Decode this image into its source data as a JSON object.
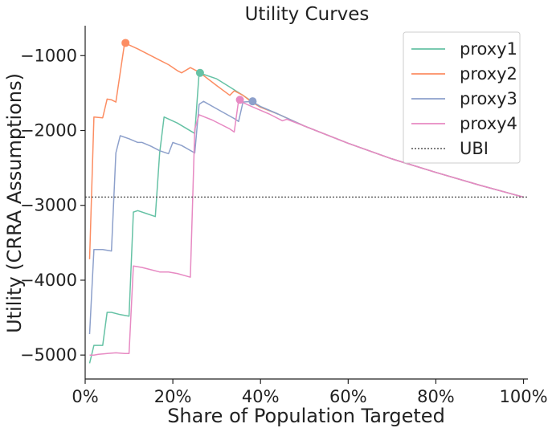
{
  "chart_data": {
    "type": "line",
    "title": "Utility Curves",
    "xlabel": "Share of Population Targeted",
    "ylabel": "Utility (CRRA Assumptions)",
    "xlim": [
      0,
      101
    ],
    "ylim": [
      -5320,
      -600
    ],
    "x_ticks": [
      0,
      20,
      40,
      60,
      80,
      100
    ],
    "x_tick_labels": [
      "0%",
      "20%",
      "40%",
      "60%",
      "80%",
      "100%"
    ],
    "y_ticks": [
      -1000,
      -2000,
      -3000,
      -4000,
      -5000
    ],
    "y_tick_labels": [
      "−1000",
      "−2000",
      "−3000",
      "−4000",
      "−5000"
    ],
    "grid": false,
    "legend_position": "top-right",
    "series": [
      {
        "name": "proxy1",
        "color": "#66c2a5",
        "points": [
          [
            1,
            -5110
          ],
          [
            2,
            -4870
          ],
          [
            4,
            -4870
          ],
          [
            5,
            -4430
          ],
          [
            6,
            -4430
          ],
          [
            8,
            -4460
          ],
          [
            10,
            -4480
          ],
          [
            11,
            -3090
          ],
          [
            12,
            -3070
          ],
          [
            14,
            -3110
          ],
          [
            16,
            -3150
          ],
          [
            17,
            -2300
          ],
          [
            18,
            -1820
          ],
          [
            21,
            -1900
          ],
          [
            25,
            -2040
          ],
          [
            26,
            -1230
          ],
          [
            30,
            -1310
          ],
          [
            33,
            -1420
          ],
          [
            36,
            -1530
          ],
          [
            38,
            -1610
          ],
          [
            40,
            -1680
          ],
          [
            44,
            -1780
          ],
          [
            50,
            -1940
          ],
          [
            60,
            -2170
          ],
          [
            70,
            -2380
          ],
          [
            80,
            -2560
          ],
          [
            90,
            -2730
          ],
          [
            100,
            -2890
          ]
        ],
        "marker": [
          26.2,
          -1230
        ]
      },
      {
        "name": "proxy2",
        "color": "#fc8d62",
        "points": [
          [
            1,
            -3720
          ],
          [
            2,
            -1820
          ],
          [
            4,
            -1830
          ],
          [
            5,
            -1580
          ],
          [
            6,
            -1590
          ],
          [
            7,
            -1620
          ],
          [
            9,
            -830
          ],
          [
            12,
            -910
          ],
          [
            15,
            -1000
          ],
          [
            17,
            -1060
          ],
          [
            19,
            -1120
          ],
          [
            21,
            -1200
          ],
          [
            22,
            -1230
          ],
          [
            24,
            -1160
          ],
          [
            26,
            -1220
          ],
          [
            30,
            -1400
          ],
          [
            33,
            -1530
          ],
          [
            34,
            -1470
          ],
          [
            36,
            -1530
          ],
          [
            38,
            -1620
          ],
          [
            40,
            -1690
          ],
          [
            44,
            -1780
          ],
          [
            50,
            -1940
          ],
          [
            60,
            -2170
          ],
          [
            70,
            -2380
          ],
          [
            80,
            -2560
          ],
          [
            90,
            -2730
          ],
          [
            100,
            -2890
          ]
        ],
        "marker": [
          9.2,
          -830
        ]
      },
      {
        "name": "proxy3",
        "color": "#8da0cb",
        "points": [
          [
            1,
            -4720
          ],
          [
            2,
            -3590
          ],
          [
            4,
            -3590
          ],
          [
            6,
            -3610
          ],
          [
            7,
            -2300
          ],
          [
            8,
            -2070
          ],
          [
            10,
            -2110
          ],
          [
            12,
            -2160
          ],
          [
            13,
            -2160
          ],
          [
            15,
            -2210
          ],
          [
            17,
            -2270
          ],
          [
            19,
            -2310
          ],
          [
            20,
            -2160
          ],
          [
            22,
            -2200
          ],
          [
            25,
            -2300
          ],
          [
            26,
            -1650
          ],
          [
            27,
            -1610
          ],
          [
            30,
            -1710
          ],
          [
            34,
            -1840
          ],
          [
            35,
            -1880
          ],
          [
            36,
            -1620
          ],
          [
            38,
            -1610
          ],
          [
            40,
            -1680
          ],
          [
            44,
            -1780
          ],
          [
            50,
            -1940
          ],
          [
            60,
            -2170
          ],
          [
            70,
            -2380
          ],
          [
            80,
            -2560
          ],
          [
            90,
            -2730
          ],
          [
            100,
            -2890
          ]
        ],
        "marker": [
          38.2,
          -1610
        ]
      },
      {
        "name": "proxy4",
        "color": "#e78ac3",
        "points": [
          [
            1,
            -5000
          ],
          [
            2,
            -5000
          ],
          [
            3,
            -4990
          ],
          [
            5,
            -4980
          ],
          [
            7,
            -4970
          ],
          [
            9,
            -4980
          ],
          [
            10,
            -4980
          ],
          [
            11,
            -3810
          ],
          [
            13,
            -3830
          ],
          [
            15,
            -3860
          ],
          [
            17,
            -3890
          ],
          [
            19,
            -3890
          ],
          [
            21,
            -3910
          ],
          [
            24,
            -3960
          ],
          [
            25,
            -1980
          ],
          [
            26,
            -1790
          ],
          [
            29,
            -1860
          ],
          [
            33,
            -1980
          ],
          [
            34,
            -2020
          ],
          [
            35,
            -1600
          ],
          [
            38,
            -1680
          ],
          [
            42,
            -1780
          ],
          [
            45,
            -1870
          ],
          [
            46,
            -1850
          ],
          [
            50,
            -1940
          ],
          [
            60,
            -2170
          ],
          [
            70,
            -2380
          ],
          [
            80,
            -2560
          ],
          [
            90,
            -2730
          ],
          [
            100,
            -2890
          ]
        ],
        "marker": [
          35.3,
          -1590
        ]
      },
      {
        "name": "UBI",
        "color": "#555555",
        "dashed": true,
        "y_constant": -2890
      }
    ]
  }
}
